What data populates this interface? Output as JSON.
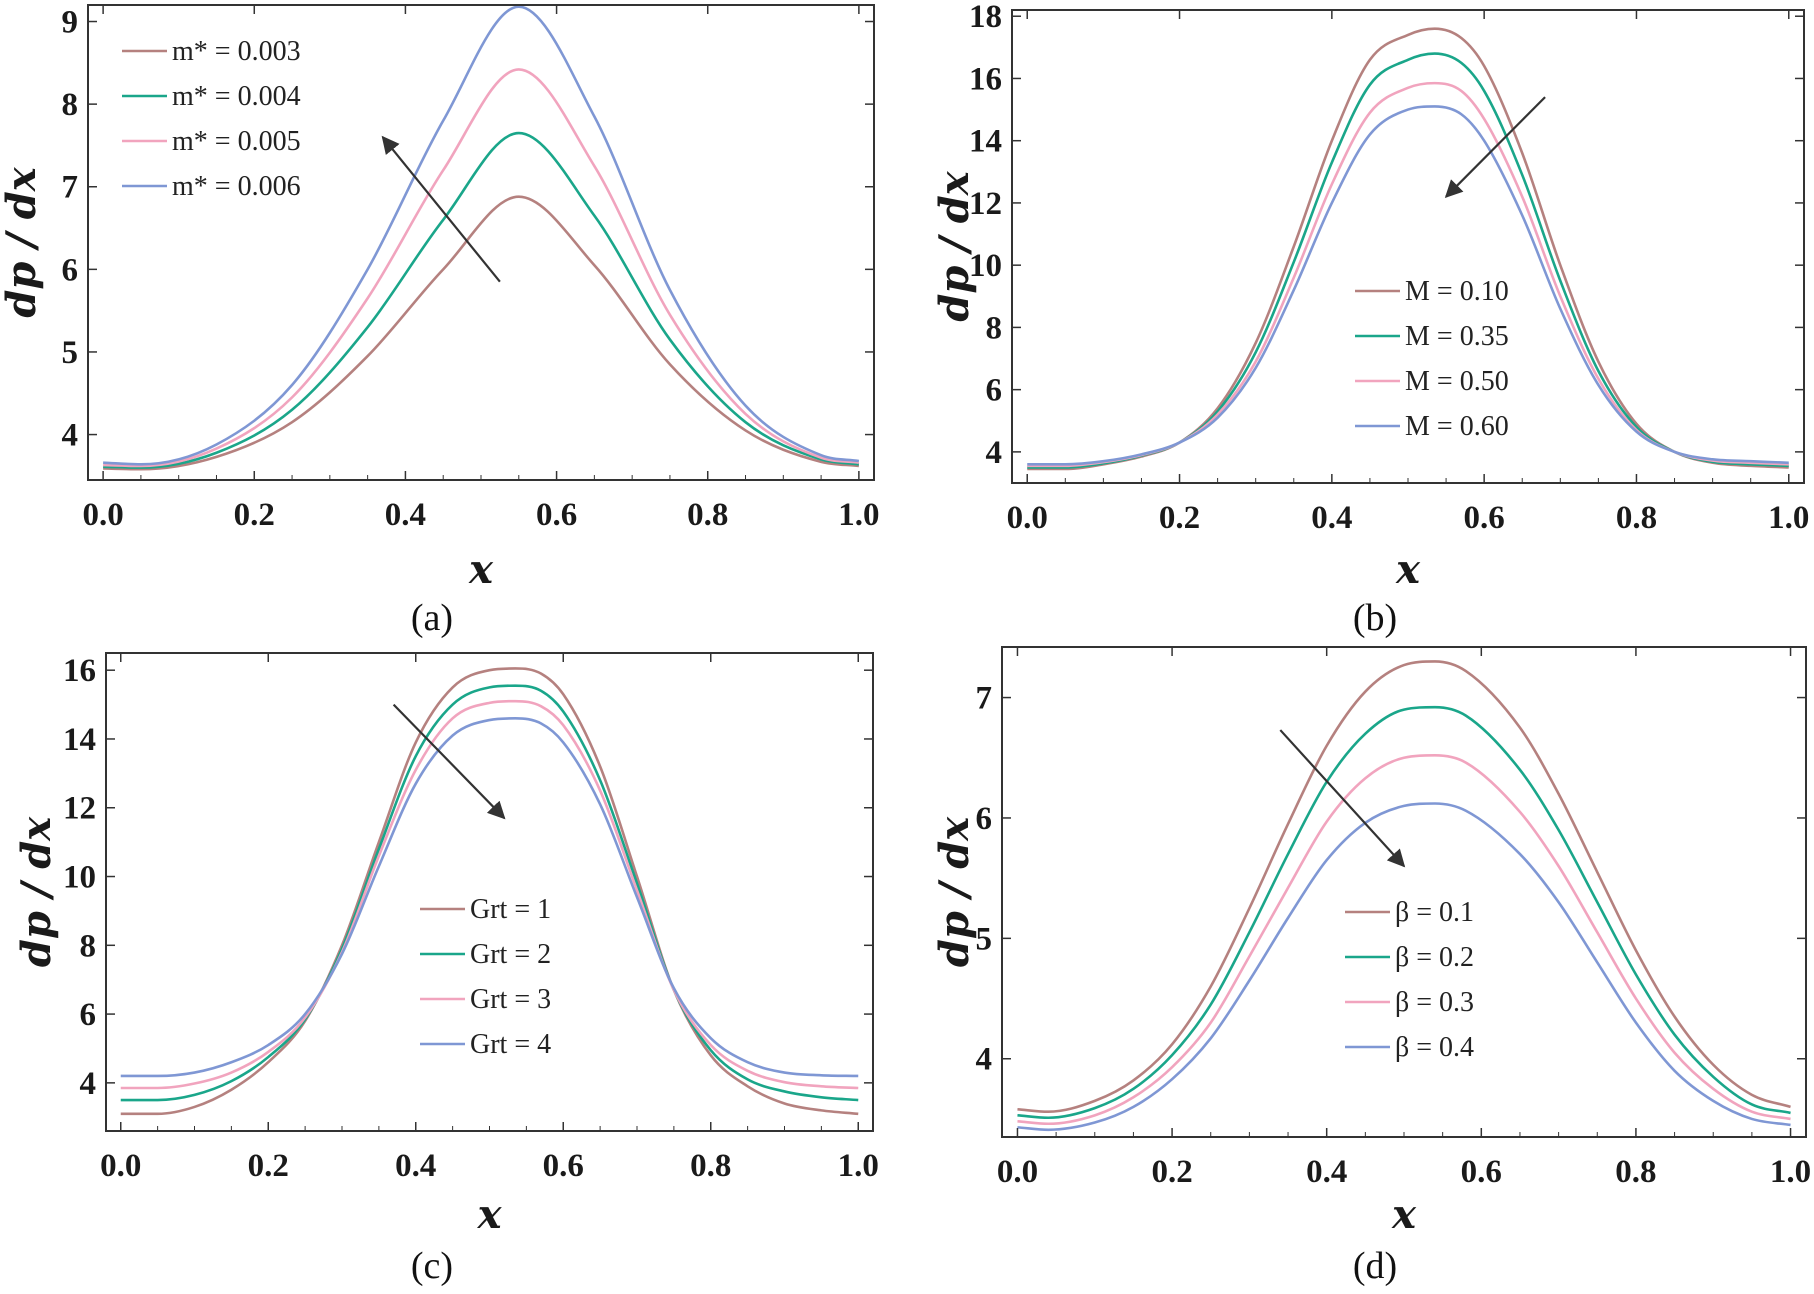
{
  "chart_data": [
    {
      "type": "line",
      "caption": "(a)",
      "xlabel": "x",
      "ylabel": "dp / dx",
      "xlim": [
        -0.02,
        1.02
      ],
      "ylim": [
        3.45,
        9.2
      ],
      "xticks": [
        "0.0",
        "0.2",
        "0.4",
        "0.6",
        "0.8",
        "1.0"
      ],
      "yticks": [
        "4",
        "5",
        "6",
        "7",
        "8",
        "9"
      ],
      "legend_position": "top-left",
      "arrow": {
        "from": [
          0.525,
          5.85
        ],
        "to": [
          0.37,
          7.6
        ]
      },
      "series": [
        {
          "name": "m* = 0.003",
          "color": "#b5817f",
          "x": [
            0,
            0.05,
            0.15,
            0.25,
            0.35,
            0.45,
            0.55,
            0.65,
            0.75,
            0.85,
            0.95,
            1.0
          ],
          "y": [
            3.59,
            3.58,
            3.73,
            4.15,
            4.95,
            6.0,
            6.88,
            6.05,
            4.85,
            4.05,
            3.67,
            3.62
          ]
        },
        {
          "name": "m* = 0.004",
          "color": "#1aa68a",
          "x": [
            0,
            0.05,
            0.15,
            0.25,
            0.35,
            0.45,
            0.55,
            0.65,
            0.75,
            0.85,
            0.95,
            1.0
          ],
          "y": [
            3.61,
            3.6,
            3.78,
            4.3,
            5.3,
            6.6,
            7.65,
            6.65,
            5.15,
            4.15,
            3.7,
            3.64
          ]
        },
        {
          "name": "m* = 0.005",
          "color": "#f1a4be",
          "x": [
            0,
            0.05,
            0.15,
            0.25,
            0.35,
            0.45,
            0.55,
            0.65,
            0.75,
            0.85,
            0.95,
            1.0
          ],
          "y": [
            3.63,
            3.62,
            3.83,
            4.45,
            5.65,
            7.2,
            8.42,
            7.25,
            5.45,
            4.25,
            3.72,
            3.66
          ]
        },
        {
          "name": "m* = 0.006",
          "color": "#7f97d4",
          "x": [
            0,
            0.05,
            0.15,
            0.25,
            0.35,
            0.45,
            0.55,
            0.65,
            0.75,
            0.85,
            0.95,
            1.0
          ],
          "y": [
            3.66,
            3.64,
            3.88,
            4.6,
            6.0,
            7.8,
            9.18,
            7.85,
            5.75,
            4.35,
            3.75,
            3.68
          ]
        }
      ]
    },
    {
      "type": "line",
      "caption": "(b)",
      "xlabel": "x",
      "ylabel": "dp / dx",
      "xlim": [
        -0.02,
        1.02
      ],
      "ylim": [
        3.0,
        18.2
      ],
      "xticks": [
        "0.0",
        "0.2",
        "0.4",
        "0.6",
        "0.8",
        "1.0"
      ],
      "yticks": [
        "4",
        "6",
        "8",
        "10",
        "12",
        "14",
        "16",
        "18"
      ],
      "legend_position": "center-right",
      "arrow": {
        "from": [
          0.68,
          15.4
        ],
        "to": [
          0.55,
          12.2
        ]
      },
      "series": [
        {
          "name": "M = 0.10",
          "color": "#b5817f",
          "x": [
            0,
            0.05,
            0.1,
            0.15,
            0.2,
            0.25,
            0.3,
            0.35,
            0.4,
            0.45,
            0.5,
            0.535,
            0.57,
            0.6,
            0.65,
            0.7,
            0.75,
            0.8,
            0.85,
            0.9,
            0.95,
            1.0
          ],
          "y": [
            3.45,
            3.45,
            3.6,
            3.85,
            4.3,
            5.4,
            7.5,
            10.6,
            14.0,
            16.6,
            17.4,
            17.6,
            17.3,
            16.4,
            13.6,
            10.0,
            6.9,
            4.9,
            4.0,
            3.65,
            3.55,
            3.5
          ]
        },
        {
          "name": "M = 0.35",
          "color": "#1aa68a",
          "x": [
            0,
            0.05,
            0.1,
            0.15,
            0.2,
            0.25,
            0.3,
            0.35,
            0.4,
            0.45,
            0.5,
            0.535,
            0.57,
            0.6,
            0.65,
            0.7,
            0.75,
            0.8,
            0.85,
            0.9,
            0.95,
            1.0
          ],
          "y": [
            3.5,
            3.5,
            3.63,
            3.88,
            4.3,
            5.3,
            7.2,
            10.1,
            13.3,
            15.8,
            16.6,
            16.8,
            16.5,
            15.6,
            12.9,
            9.5,
            6.6,
            4.8,
            4.0,
            3.68,
            3.6,
            3.55
          ]
        },
        {
          "name": "M = 0.50",
          "color": "#f1a4be",
          "x": [
            0,
            0.05,
            0.1,
            0.15,
            0.2,
            0.25,
            0.3,
            0.35,
            0.4,
            0.45,
            0.5,
            0.535,
            0.57,
            0.6,
            0.65,
            0.7,
            0.75,
            0.8,
            0.85,
            0.9,
            0.95,
            1.0
          ],
          "y": [
            3.55,
            3.55,
            3.67,
            3.9,
            4.3,
            5.2,
            6.9,
            9.6,
            12.6,
            14.9,
            15.7,
            15.85,
            15.6,
            14.7,
            12.2,
            9.0,
            6.35,
            4.7,
            4.0,
            3.72,
            3.65,
            3.6
          ]
        },
        {
          "name": "M = 0.60",
          "color": "#7f97d4",
          "x": [
            0,
            0.05,
            0.1,
            0.15,
            0.2,
            0.25,
            0.3,
            0.35,
            0.4,
            0.45,
            0.5,
            0.535,
            0.57,
            0.6,
            0.65,
            0.7,
            0.75,
            0.8,
            0.85,
            0.9,
            0.95,
            1.0
          ],
          "y": [
            3.6,
            3.6,
            3.7,
            3.92,
            4.3,
            5.1,
            6.7,
            9.2,
            12.0,
            14.2,
            15.0,
            15.1,
            14.85,
            14.0,
            11.6,
            8.6,
            6.15,
            4.65,
            4.0,
            3.76,
            3.7,
            3.65
          ]
        }
      ]
    },
    {
      "type": "line",
      "caption": "(c)",
      "xlabel": "x",
      "ylabel": "dp / dx",
      "xlim": [
        -0.02,
        1.02
      ],
      "ylim": [
        2.6,
        16.5
      ],
      "xticks": [
        "0.0",
        "0.2",
        "0.4",
        "0.6",
        "0.8",
        "1.0"
      ],
      "yticks": [
        "4",
        "6",
        "8",
        "10",
        "12",
        "14",
        "16"
      ],
      "legend_position": "center-right",
      "arrow": {
        "from": [
          0.37,
          15.0
        ],
        "to": [
          0.52,
          11.7
        ]
      },
      "series": [
        {
          "name": "Grt = 1",
          "color": "#b5817f",
          "x": [
            0,
            0.05,
            0.1,
            0.15,
            0.2,
            0.25,
            0.3,
            0.35,
            0.4,
            0.45,
            0.5,
            0.535,
            0.57,
            0.6,
            0.65,
            0.7,
            0.75,
            0.8,
            0.85,
            0.9,
            0.95,
            1.0
          ],
          "y": [
            3.1,
            3.1,
            3.3,
            3.8,
            4.6,
            5.8,
            8.0,
            11.0,
            13.9,
            15.5,
            16.0,
            16.05,
            15.9,
            15.3,
            13.2,
            10.0,
            6.7,
            4.8,
            3.9,
            3.4,
            3.2,
            3.1
          ]
        },
        {
          "name": "Grt = 2",
          "color": "#1aa68a",
          "x": [
            0,
            0.05,
            0.1,
            0.15,
            0.2,
            0.25,
            0.3,
            0.35,
            0.4,
            0.45,
            0.5,
            0.535,
            0.57,
            0.6,
            0.65,
            0.7,
            0.75,
            0.8,
            0.85,
            0.9,
            0.95,
            1.0
          ],
          "y": [
            3.5,
            3.5,
            3.65,
            4.05,
            4.75,
            5.85,
            7.9,
            10.8,
            13.5,
            15.0,
            15.5,
            15.55,
            15.4,
            14.8,
            12.8,
            9.8,
            6.7,
            4.95,
            4.1,
            3.75,
            3.58,
            3.5
          ]
        },
        {
          "name": "Grt = 3",
          "color": "#f1a4be",
          "x": [
            0,
            0.05,
            0.1,
            0.15,
            0.2,
            0.25,
            0.3,
            0.35,
            0.4,
            0.45,
            0.5,
            0.535,
            0.57,
            0.6,
            0.65,
            0.7,
            0.75,
            0.8,
            0.85,
            0.9,
            0.95,
            1.0
          ],
          "y": [
            3.85,
            3.85,
            3.98,
            4.3,
            4.9,
            5.9,
            7.8,
            10.6,
            13.1,
            14.6,
            15.05,
            15.1,
            14.95,
            14.4,
            12.5,
            9.6,
            6.7,
            5.1,
            4.35,
            4.02,
            3.9,
            3.85
          ]
        },
        {
          "name": "Grt = 4",
          "color": "#7f97d4",
          "x": [
            0,
            0.05,
            0.1,
            0.15,
            0.2,
            0.25,
            0.3,
            0.35,
            0.4,
            0.45,
            0.5,
            0.535,
            0.57,
            0.6,
            0.65,
            0.7,
            0.75,
            0.8,
            0.85,
            0.9,
            0.95,
            1.0
          ],
          "y": [
            4.2,
            4.2,
            4.3,
            4.6,
            5.1,
            6.0,
            7.75,
            10.3,
            12.7,
            14.1,
            14.55,
            14.6,
            14.45,
            13.9,
            12.1,
            9.4,
            6.75,
            5.3,
            4.6,
            4.3,
            4.22,
            4.2
          ]
        }
      ]
    },
    {
      "type": "line",
      "caption": "(d)",
      "xlabel": "x",
      "ylabel": "dp / dx",
      "xlim": [
        -0.02,
        1.02
      ],
      "ylim": [
        3.35,
        7.42
      ],
      "xticks": [
        "0.0",
        "0.2",
        "0.4",
        "0.6",
        "0.8",
        "1.0"
      ],
      "yticks": [
        "4",
        "5",
        "6",
        "7"
      ],
      "legend_position": "bottom-right",
      "arrow": {
        "from": [
          0.34,
          6.73
        ],
        "to": [
          0.5,
          5.6
        ]
      },
      "series": [
        {
          "name": "β = 0.1",
          "color": "#b5817f",
          "x": [
            0,
            0.04,
            0.1,
            0.15,
            0.2,
            0.25,
            0.3,
            0.35,
            0.4,
            0.45,
            0.5,
            0.54,
            0.58,
            0.65,
            0.7,
            0.75,
            0.8,
            0.85,
            0.9,
            0.95,
            1.0
          ],
          "y": [
            3.58,
            3.56,
            3.65,
            3.82,
            4.12,
            4.6,
            5.25,
            5.95,
            6.6,
            7.05,
            7.27,
            7.3,
            7.22,
            6.75,
            6.2,
            5.55,
            4.9,
            4.35,
            3.95,
            3.7,
            3.6
          ]
        },
        {
          "name": "β = 0.2",
          "color": "#1aa68a",
          "x": [
            0,
            0.04,
            0.1,
            0.15,
            0.2,
            0.25,
            0.3,
            0.35,
            0.4,
            0.45,
            0.5,
            0.54,
            0.58,
            0.65,
            0.7,
            0.75,
            0.8,
            0.85,
            0.9,
            0.95,
            1.0
          ],
          "y": [
            3.53,
            3.51,
            3.59,
            3.75,
            4.03,
            4.45,
            5.05,
            5.7,
            6.3,
            6.7,
            6.9,
            6.92,
            6.85,
            6.4,
            5.9,
            5.3,
            4.7,
            4.2,
            3.85,
            3.62,
            3.55
          ]
        },
        {
          "name": "β = 0.3",
          "color": "#f1a4be",
          "x": [
            0,
            0.04,
            0.1,
            0.15,
            0.2,
            0.25,
            0.3,
            0.35,
            0.4,
            0.45,
            0.5,
            0.54,
            0.58,
            0.65,
            0.7,
            0.75,
            0.8,
            0.85,
            0.9,
            0.95,
            1.0
          ],
          "y": [
            3.48,
            3.46,
            3.53,
            3.68,
            3.93,
            4.3,
            4.85,
            5.42,
            5.97,
            6.33,
            6.5,
            6.52,
            6.46,
            6.05,
            5.6,
            5.05,
            4.5,
            4.05,
            3.75,
            3.56,
            3.5
          ]
        },
        {
          "name": "β = 0.4",
          "color": "#7f97d4",
          "x": [
            0,
            0.04,
            0.1,
            0.15,
            0.2,
            0.25,
            0.3,
            0.35,
            0.4,
            0.45,
            0.5,
            0.54,
            0.58,
            0.65,
            0.7,
            0.75,
            0.8,
            0.85,
            0.9,
            0.95,
            1.0
          ],
          "y": [
            3.43,
            3.41,
            3.47,
            3.6,
            3.83,
            4.17,
            4.65,
            5.17,
            5.65,
            5.96,
            6.1,
            6.12,
            6.06,
            5.7,
            5.3,
            4.8,
            4.3,
            3.9,
            3.65,
            3.5,
            3.45
          ]
        }
      ]
    }
  ]
}
